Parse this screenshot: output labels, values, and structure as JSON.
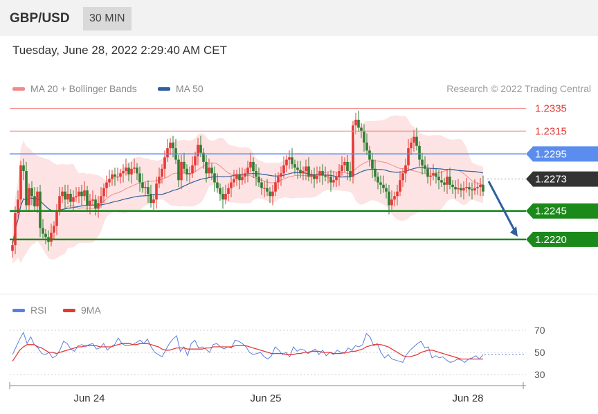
{
  "header": {
    "symbol": "GBP/USD",
    "interval": "30 MIN",
    "datetime": "Tuesday, June 28, 2022 2:29:40 AM CET"
  },
  "legend": {
    "bollinger_label": "MA 20 + Bollinger Bands",
    "bollinger_color": "#f48b8b",
    "ma50_label": "MA 50",
    "ma50_color": "#2f5f9e",
    "research_label": "Research © 2022 Trading Central"
  },
  "rsi_legend": {
    "rsi_label": "RSI",
    "rsi_color": "#5b7fe0",
    "ma9_label": "9MA",
    "ma9_color": "#e53935"
  },
  "colors": {
    "bullish": "#e53935",
    "bearish": "#2e7d32",
    "resistance": "#f48b8b",
    "pivot": "#5b8def",
    "support": "#1b8a1b",
    "last_price": "#333333",
    "band_fill": "#fde3e3",
    "forecast_arrow": "#2f5f9e"
  },
  "chart_data": [
    {
      "type": "candlestick",
      "symbol": "GBP/USD",
      "timeframe": "30 MIN",
      "x_tick_labels": [
        "Jun 24",
        "Jun 25",
        "Jun 28"
      ],
      "y_range": [
        1.2175,
        1.2345
      ],
      "levels": [
        {
          "label": "1.2335",
          "value": 1.2335,
          "role": "resistance"
        },
        {
          "label": "1.2315",
          "value": 1.2315,
          "role": "resistance"
        },
        {
          "label": "1.2295",
          "value": 1.2295,
          "role": "pivot"
        },
        {
          "label": "1.2273",
          "value": 1.2273,
          "role": "last"
        },
        {
          "label": "1.2245",
          "value": 1.2245,
          "role": "support"
        },
        {
          "label": "1.2220",
          "value": 1.222,
          "role": "support"
        }
      ],
      "forecast_arrow": {
        "from": 1.2271,
        "to": 1.222
      },
      "close": [
        1.2215,
        1.2243,
        1.2255,
        1.2285,
        1.228,
        1.225,
        1.2265,
        1.2258,
        1.2249,
        1.2262,
        1.223,
        1.2225,
        1.2222,
        1.2218,
        1.2226,
        1.2232,
        1.2245,
        1.2258,
        1.2262,
        1.2255,
        1.226,
        1.2253,
        1.2257,
        1.2258,
        1.2262,
        1.2258,
        1.2263,
        1.225,
        1.2254,
        1.2255,
        1.2247,
        1.2252,
        1.2258,
        1.2265,
        1.227,
        1.2273,
        1.2277,
        1.2275,
        1.2275,
        1.2278,
        1.228,
        1.2283,
        1.2277,
        1.2282,
        1.2283,
        1.2278,
        1.227,
        1.2265,
        1.2266,
        1.226,
        1.2252,
        1.2255,
        1.2269,
        1.2275,
        1.2282,
        1.2292,
        1.23,
        1.2305,
        1.23,
        1.229,
        1.2272,
        1.2288,
        1.2282,
        1.2277,
        1.2278,
        1.2285,
        1.2293,
        1.2303,
        1.2296,
        1.2288,
        1.2278,
        1.2283,
        1.2278,
        1.227,
        1.2265,
        1.226,
        1.2255,
        1.226,
        1.2265,
        1.227,
        1.2273,
        1.2277,
        1.2272,
        1.2275,
        1.2278,
        1.2283,
        1.2288,
        1.228,
        1.2275,
        1.227,
        1.2265,
        1.2265,
        1.2262,
        1.2258,
        1.2262,
        1.227,
        1.2275,
        1.2278,
        1.2285,
        1.229,
        1.2292,
        1.2286,
        1.2283,
        1.2281,
        1.2278,
        1.228,
        1.2284,
        1.2275,
        1.2277,
        1.2273,
        1.2276,
        1.228,
        1.2276,
        1.2275,
        1.2275,
        1.227,
        1.2272,
        1.2275,
        1.228,
        1.2285,
        1.2288,
        1.228,
        1.2275,
        1.232,
        1.2325,
        1.2318,
        1.2315,
        1.2305,
        1.2298,
        1.229,
        1.2282,
        1.2275,
        1.227,
        1.2268,
        1.2265,
        1.2262,
        1.225,
        1.2255,
        1.2258,
        1.2262,
        1.2272,
        1.2278,
        1.2285,
        1.23,
        1.2305,
        1.231,
        1.2302,
        1.229,
        1.2285,
        1.2282,
        1.2275,
        1.2276,
        1.2278,
        1.2275,
        1.2272,
        1.227,
        1.2268,
        1.2275,
        1.2268,
        1.2266,
        1.2264,
        1.2265,
        1.2263,
        1.2265,
        1.2266,
        1.2264,
        1.2263,
        1.2265,
        1.2266,
        1.2268,
        1.2262
      ]
    },
    {
      "type": "line",
      "name": "RSI",
      "x_tick_labels": [
        "Jun 24",
        "Jun 25",
        "Jun 28"
      ],
      "y_tick_labels": [
        "70",
        "50",
        "30"
      ],
      "y_range": [
        25,
        75
      ],
      "series": [
        {
          "name": "RSI",
          "values": [
            48,
            55,
            62,
            68,
            58,
            64,
            57,
            54,
            49,
            48,
            50,
            45,
            47,
            52,
            60,
            58,
            53,
            51,
            56,
            57,
            55,
            57,
            58,
            53,
            54,
            58,
            52,
            55,
            57,
            63,
            58,
            56,
            56,
            57,
            59,
            61,
            58,
            62,
            55,
            50,
            48,
            46,
            52,
            58,
            62,
            65,
            51,
            55,
            47,
            58,
            61,
            54,
            55,
            53,
            50,
            57,
            58,
            55,
            53,
            55,
            54,
            61,
            60,
            58,
            55,
            50,
            48,
            49,
            50,
            46,
            44,
            47,
            55,
            52,
            48,
            50,
            46,
            55,
            51,
            53,
            52,
            49,
            51,
            53,
            48,
            52,
            47,
            50,
            48,
            52,
            50,
            49,
            54,
            52,
            56,
            55,
            57,
            67,
            64,
            56,
            58,
            50,
            45,
            48,
            44,
            43,
            42,
            41,
            48,
            52,
            55,
            58,
            60,
            54,
            55,
            45,
            47,
            45,
            46,
            43,
            41,
            42,
            44,
            43,
            41,
            44,
            45,
            47,
            44,
            48
          ]
        },
        {
          "name": "9MA",
          "values": [
            42,
            47,
            52,
            55,
            57,
            57,
            57,
            55,
            54,
            52,
            50,
            50,
            49,
            50,
            51,
            52,
            53,
            54,
            55,
            55,
            56,
            56,
            56,
            56,
            55,
            55,
            55,
            55,
            56,
            57,
            58,
            58,
            58,
            57,
            57,
            58,
            58,
            58,
            57,
            56,
            55,
            53,
            52,
            52,
            53,
            54,
            54,
            54,
            53,
            53,
            53,
            53,
            53,
            54,
            54,
            55,
            55,
            55,
            55,
            55,
            55,
            56,
            56,
            56,
            56,
            55,
            54,
            53,
            52,
            51,
            50,
            49,
            49,
            49,
            49,
            48,
            48,
            48,
            49,
            49,
            50,
            50,
            51,
            51,
            51,
            50,
            50,
            50,
            49,
            49,
            49,
            50,
            50,
            51,
            51,
            52,
            53,
            55,
            56,
            57,
            57,
            57,
            56,
            55,
            53,
            51,
            49,
            47,
            46,
            46,
            47,
            48,
            50,
            51,
            52,
            52,
            51,
            50,
            49,
            48,
            47,
            46,
            45,
            44,
            44,
            44,
            44,
            44,
            44,
            44
          ]
        }
      ]
    }
  ]
}
